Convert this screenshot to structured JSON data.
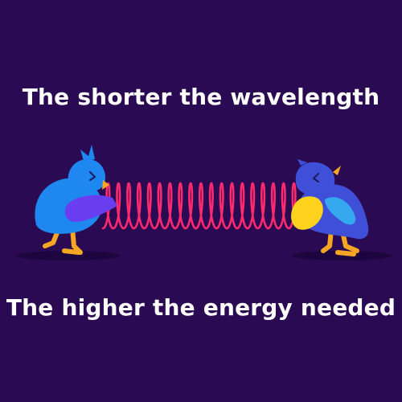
{
  "headline_top": "The shorter the wavelength",
  "headline_bottom": "The higher the energy needed",
  "colors": {
    "background": "#2a0a52",
    "text": "#ffffff",
    "wave": "#ff2a6d",
    "left_bird_body": "#1e88f0",
    "left_bird_wing": "#6a3df0",
    "right_bird_body": "#3f4fd8",
    "right_bird_belly": "#ffd21e",
    "right_bird_wing": "#35a8f0",
    "beak_and_legs": "#f5a623",
    "shadow": "#1d0640"
  },
  "icons": [
    "left-bird-icon",
    "right-bird-icon",
    "spring-wave-icon"
  ]
}
